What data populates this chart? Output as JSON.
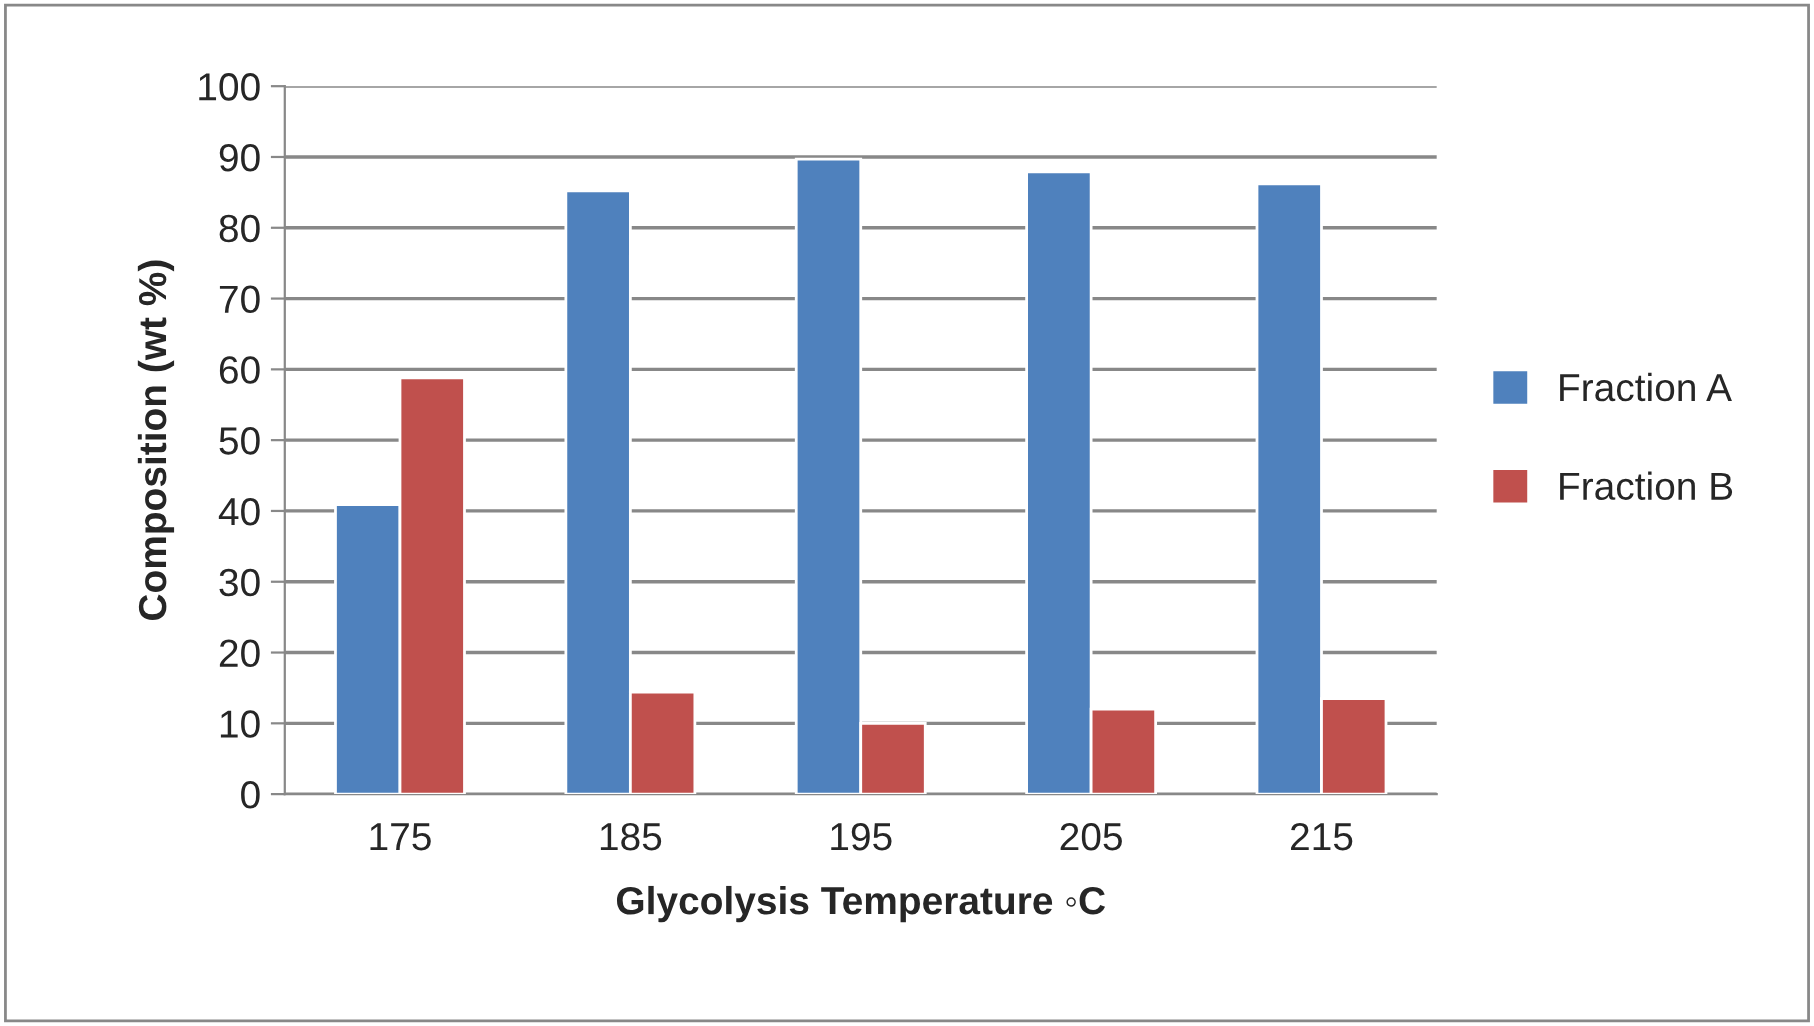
{
  "chart_data": {
    "type": "bar",
    "xlabel": "Glycolysis Temperature ◦C",
    "ylabel": "Composition (wt %)",
    "categories": [
      "175",
      "185",
      "195",
      "205",
      "215"
    ],
    "series": [
      {
        "name": "Fraction A",
        "color": "#4f81bd",
        "values": [
          40.9,
          85.2,
          89.7,
          87.9,
          86.2
        ]
      },
      {
        "name": "Fraction B",
        "color": "#c0504d",
        "values": [
          58.8,
          14.4,
          10.0,
          12.0,
          13.5
        ]
      }
    ],
    "ylim": [
      0,
      100
    ],
    "yticks": [
      0,
      10,
      20,
      30,
      40,
      50,
      60,
      70,
      80,
      90,
      100
    ],
    "grid": "y",
    "legend": "right"
  }
}
